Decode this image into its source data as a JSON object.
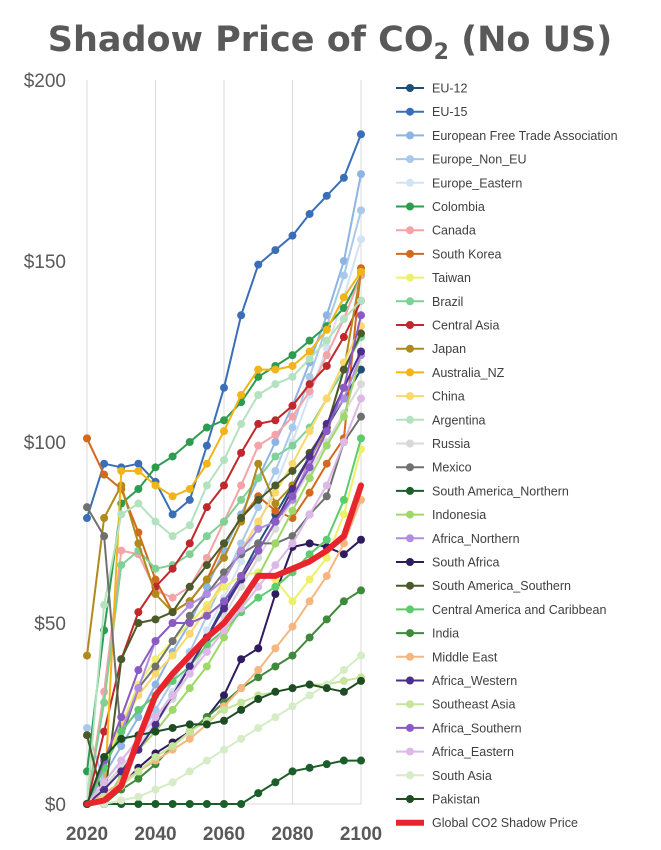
{
  "chart_data": {
    "type": "line",
    "title": {
      "main": "Shadow Price of CO",
      "subscript": "2",
      "suffix": " (No US)"
    },
    "xlabel": "",
    "ylabel": "",
    "xlim": [
      2020,
      2100
    ],
    "ylim": [
      0,
      200
    ],
    "x_ticks": [
      "2020",
      "2040",
      "2060",
      "2080",
      "2100"
    ],
    "y_ticks": [
      "$0",
      "$50",
      "$100",
      "$150",
      "$200"
    ],
    "grid": "vertical",
    "legend_position": "right",
    "x": [
      2020,
      2025,
      2030,
      2035,
      2040,
      2045,
      2050,
      2055,
      2060,
      2065,
      2070,
      2075,
      2080,
      2085,
      2090,
      2095,
      2100
    ],
    "series": [
      {
        "name": "EU-12",
        "color": "#1f4e79",
        "values": [
          0,
          5,
          10,
          15,
          22,
          30,
          38,
          46,
          55,
          63,
          72,
          80,
          88,
          96,
          104,
          112,
          120
        ]
      },
      {
        "name": "EU-15",
        "color": "#3a6fb8",
        "values": [
          79,
          94,
          93,
          94,
          89,
          80,
          84,
          99,
          115,
          135,
          149,
          153,
          157,
          163,
          168,
          173,
          185
        ]
      },
      {
        "name": "European Free Trade Association",
        "color": "#8eb4e3",
        "values": [
          0,
          8,
          16,
          24,
          33,
          42,
          50,
          60,
          70,
          80,
          90,
          100,
          110,
          122,
          135,
          150,
          174
        ]
      },
      {
        "name": "Europe_Non_EU",
        "color": "#a9c9ea",
        "values": [
          21,
          6,
          12,
          18,
          26,
          34,
          42,
          52,
          62,
          72,
          82,
          92,
          104,
          118,
          132,
          146,
          164
        ]
      },
      {
        "name": "Europe_Eastern",
        "color": "#d2e3f5",
        "values": [
          0,
          5,
          10,
          16,
          23,
          31,
          39,
          48,
          57,
          67,
          77,
          88,
          100,
          113,
          126,
          140,
          156
        ]
      },
      {
        "name": "Colombia",
        "color": "#2e9c4f",
        "values": [
          9,
          48,
          83,
          87,
          93,
          96,
          100,
          104,
          106,
          111,
          118,
          121,
          124,
          128,
          132,
          137,
          146
        ]
      },
      {
        "name": "Canada",
        "color": "#f4a3a8",
        "values": [
          0,
          31,
          70,
          69,
          59,
          57,
          60,
          68,
          78,
          88,
          99,
          102,
          107,
          114,
          124,
          134,
          146
        ]
      },
      {
        "name": "South Korea",
        "color": "#d2691e",
        "values": [
          101,
          91,
          87,
          75,
          62,
          53,
          56,
          62,
          72,
          79,
          85,
          81,
          79,
          86,
          94,
          101,
          148
        ]
      },
      {
        "name": "Taiwan",
        "color": "#eef06a",
        "values": [
          0,
          10,
          22,
          33,
          40,
          45,
          50,
          55,
          60,
          63,
          64,
          62,
          56,
          62,
          68,
          80,
          98
        ]
      },
      {
        "name": "Brazil",
        "color": "#7fd195",
        "values": [
          0,
          28,
          66,
          70,
          65,
          66,
          69,
          74,
          78,
          84,
          90,
          96,
          99,
          104,
          112,
          120,
          129
        ]
      },
      {
        "name": "Central Asia",
        "color": "#c0282d",
        "values": [
          0,
          20,
          40,
          53,
          60,
          65,
          72,
          82,
          88,
          97,
          105,
          106,
          110,
          116,
          121,
          129,
          139
        ]
      },
      {
        "name": "Japan",
        "color": "#b08a1c",
        "values": [
          41,
          79,
          88,
          72,
          58,
          53,
          56,
          62,
          68,
          78,
          94,
          83,
          88,
          95,
          104,
          120,
          147
        ]
      },
      {
        "name": "Australia_NZ",
        "color": "#f2b416",
        "values": [
          0,
          0,
          92,
          92,
          88,
          85,
          87,
          94,
          103,
          113,
          120,
          120,
          121,
          125,
          131,
          140,
          147
        ]
      },
      {
        "name": "China",
        "color": "#fad86b",
        "values": [
          0,
          12,
          22,
          30,
          36,
          41,
          47,
          54,
          62,
          70,
          78,
          86,
          94,
          103,
          112,
          122,
          132
        ]
      },
      {
        "name": "Argentina",
        "color": "#b4e2c0",
        "values": [
          0,
          55,
          80,
          83,
          78,
          74,
          77,
          88,
          95,
          105,
          113,
          116,
          118,
          123,
          128,
          134,
          139
        ]
      },
      {
        "name": "Russia",
        "color": "#d9d9d9",
        "values": [
          0,
          5,
          10,
          16,
          22,
          29,
          36,
          44,
          52,
          60,
          68,
          76,
          84,
          92,
          100,
          108,
          116
        ]
      },
      {
        "name": "Mexico",
        "color": "#707070",
        "values": [
          82,
          74,
          18,
          32,
          38,
          45,
          52,
          58,
          64,
          69,
          72,
          72,
          74,
          80,
          85,
          100,
          107
        ]
      },
      {
        "name": "South America_Northern",
        "color": "#1c5e2a",
        "values": [
          0,
          0,
          0,
          0,
          0,
          0,
          0,
          0,
          0,
          0,
          3,
          6,
          9,
          10,
          11,
          12,
          12
        ]
      },
      {
        "name": "Indonesia",
        "color": "#9fd86a",
        "values": [
          0,
          0,
          8,
          15,
          20,
          26,
          32,
          38,
          46,
          54,
          63,
          72,
          81,
          90,
          99,
          107,
          124
        ]
      },
      {
        "name": "Africa_Northern",
        "color": "#b08de0",
        "values": [
          0,
          10,
          20,
          32,
          45,
          50,
          55,
          58,
          62,
          70,
          76,
          78,
          84,
          95,
          105,
          112,
          124
        ]
      },
      {
        "name": "South Africa",
        "color": "#2e1c5e",
        "values": [
          0,
          0,
          5,
          10,
          14,
          17,
          20,
          24,
          30,
          40,
          43,
          58,
          71,
          72,
          71,
          69,
          73
        ]
      },
      {
        "name": "South America_Southern",
        "color": "#4a5a2a",
        "values": [
          19,
          0,
          40,
          50,
          51,
          53,
          60,
          66,
          72,
          79,
          84,
          88,
          92,
          97,
          104,
          120,
          130
        ]
      },
      {
        "name": "Central America and Caribbean",
        "color": "#5ccc6e",
        "values": [
          0,
          10,
          20,
          26,
          30,
          34,
          38,
          44,
          48,
          53,
          57,
          60,
          64,
          69,
          73,
          84,
          101
        ]
      },
      {
        "name": "India",
        "color": "#3f8a3a",
        "values": [
          0,
          0,
          4,
          7,
          11,
          16,
          20,
          24,
          28,
          32,
          35,
          38,
          41,
          46,
          51,
          56,
          59
        ]
      },
      {
        "name": "Middle East",
        "color": "#f5b77f",
        "values": [
          0,
          3,
          6,
          9,
          12,
          15,
          18,
          22,
          27,
          32,
          37,
          43,
          49,
          56,
          63,
          72,
          84
        ]
      },
      {
        "name": "Africa_Western",
        "color": "#4b2e8a",
        "values": [
          0,
          4,
          9,
          15,
          22,
          30,
          38,
          46,
          54,
          62,
          70,
          78,
          87,
          96,
          105,
          115,
          125
        ]
      },
      {
        "name": "Southeast Asia",
        "color": "#c5e59a",
        "values": [
          0,
          2,
          5,
          9,
          13,
          16,
          20,
          23,
          26,
          28,
          30,
          31,
          32,
          33,
          33,
          34,
          35
        ]
      },
      {
        "name": "Africa_Southern",
        "color": "#8a5bc2",
        "values": [
          0,
          12,
          24,
          37,
          45,
          50,
          50,
          52,
          56,
          63,
          70,
          78,
          85,
          93,
          103,
          115,
          135
        ]
      },
      {
        "name": "Africa_Eastern",
        "color": "#dcb9e6",
        "values": [
          0,
          6,
          12,
          18,
          24,
          30,
          36,
          42,
          48,
          54,
          60,
          66,
          72,
          80,
          88,
          100,
          112
        ]
      },
      {
        "name": "South Asia",
        "color": "#d5ecc6",
        "values": [
          0,
          0,
          1,
          2,
          4,
          6,
          9,
          12,
          15,
          18,
          21,
          24,
          27,
          30,
          33,
          37,
          41
        ]
      },
      {
        "name": "Pakistan",
        "color": "#1e4d24",
        "values": [
          0,
          13,
          18,
          19,
          20,
          21,
          22,
          22,
          23,
          26,
          29,
          31,
          32,
          33,
          32,
          31,
          34
        ]
      },
      {
        "name": "Global CO2 Shadow Price",
        "color": "#e8242c",
        "values": [
          0,
          1,
          5,
          18,
          30,
          36,
          41,
          46,
          50,
          56,
          63,
          63,
          65,
          67,
          70,
          74,
          88
        ]
      }
    ]
  }
}
